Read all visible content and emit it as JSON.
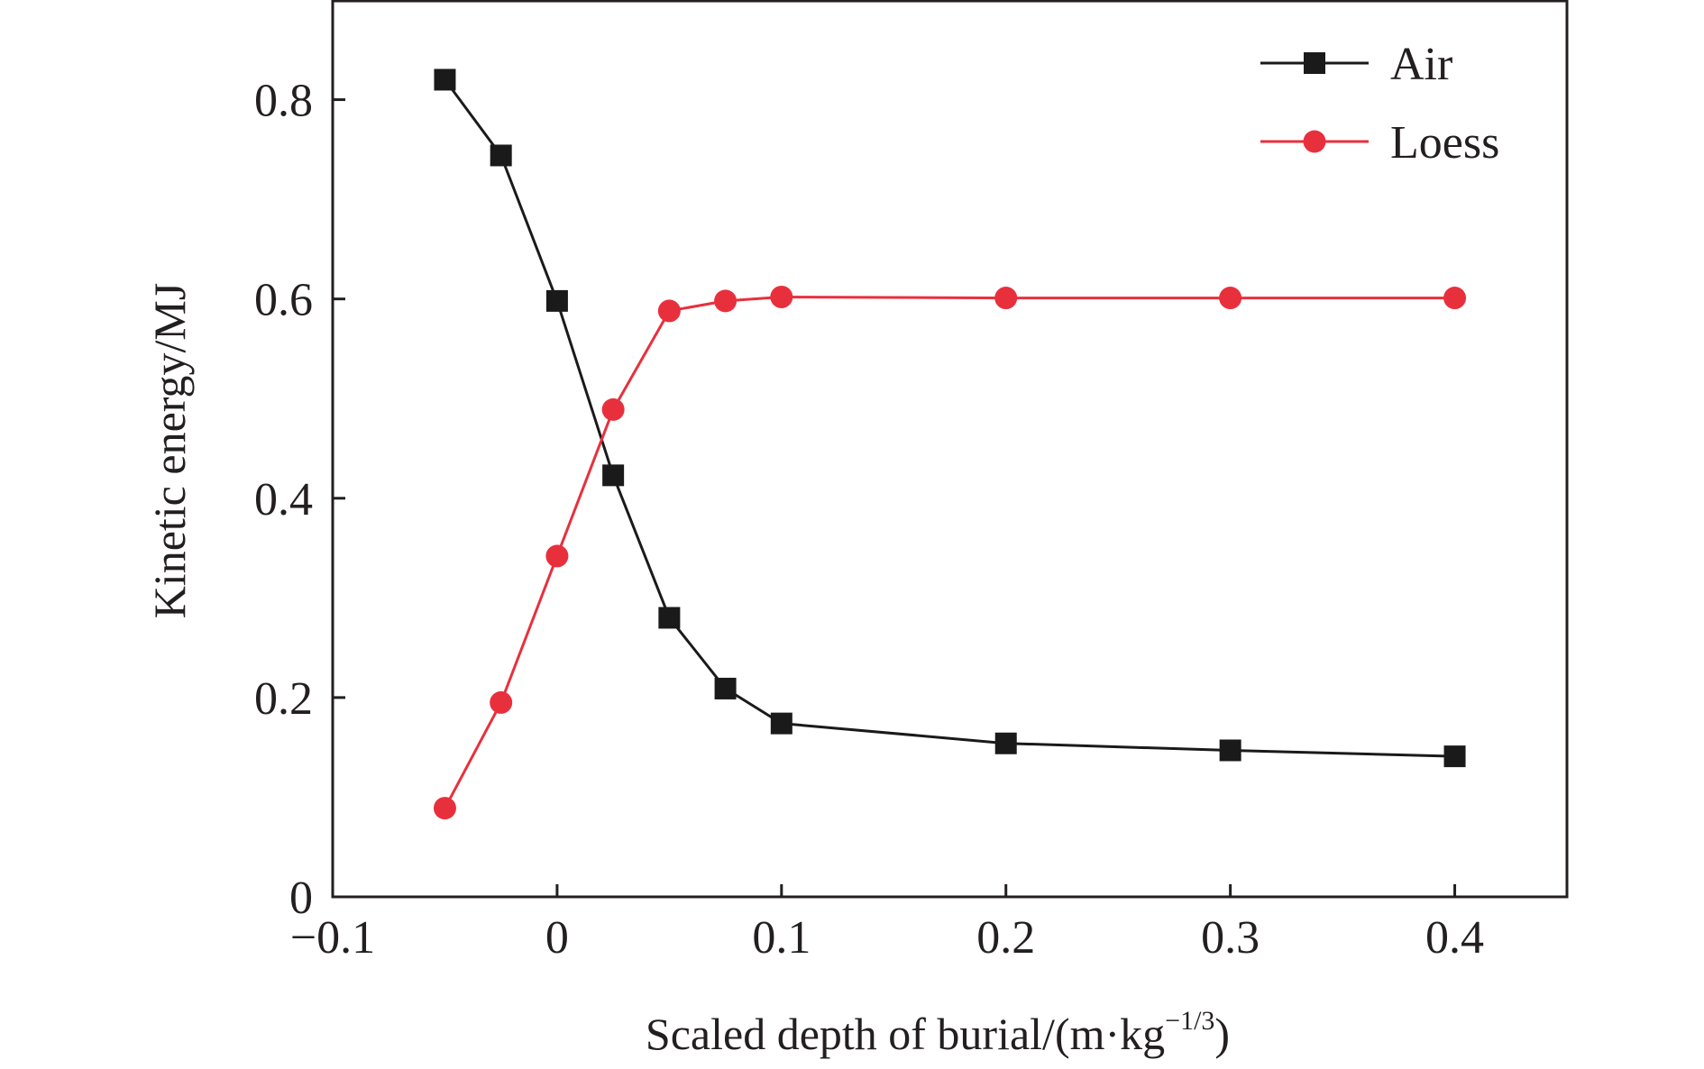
{
  "chart_data": {
    "type": "line",
    "xlabel": "Scaled depth of burial/(m·kg",
    "xlabel_sup": "−1/3",
    "xlabel_tail": ")",
    "ylabel": "Kinetic energy/MJ",
    "xlim": [
      -0.1,
      0.45
    ],
    "ylim": [
      0,
      0.9
    ],
    "x_ticks": [
      -0.1,
      0,
      0.1,
      0.2,
      0.3,
      0.4
    ],
    "x_tick_labels": [
      "−0.1",
      "0",
      "0.1",
      "0.2",
      "0.3",
      "0.4"
    ],
    "y_ticks": [
      0,
      0.2,
      0.4,
      0.6,
      0.8
    ],
    "y_tick_labels": [
      "0",
      "0.2",
      "0.4",
      "0.6",
      "0.8"
    ],
    "grid": false,
    "legend_position": "top-right",
    "series": [
      {
        "name": "Air",
        "marker": "square",
        "color": "#1a1a1a",
        "x": [
          -0.05,
          -0.025,
          0,
          0.025,
          0.05,
          0.075,
          0.1,
          0.2,
          0.3,
          0.4
        ],
        "y": [
          0.82,
          0.744,
          0.598,
          0.423,
          0.28,
          0.209,
          0.174,
          0.154,
          0.147,
          0.141
        ]
      },
      {
        "name": "Loess",
        "marker": "circle",
        "color": "#e8303d",
        "x": [
          -0.05,
          -0.025,
          0,
          0.025,
          0.05,
          0.075,
          0.1,
          0.2,
          0.3,
          0.4
        ],
        "y": [
          0.089,
          0.195,
          0.342,
          0.489,
          0.588,
          0.598,
          0.602,
          0.601,
          0.601,
          0.601
        ]
      }
    ]
  }
}
